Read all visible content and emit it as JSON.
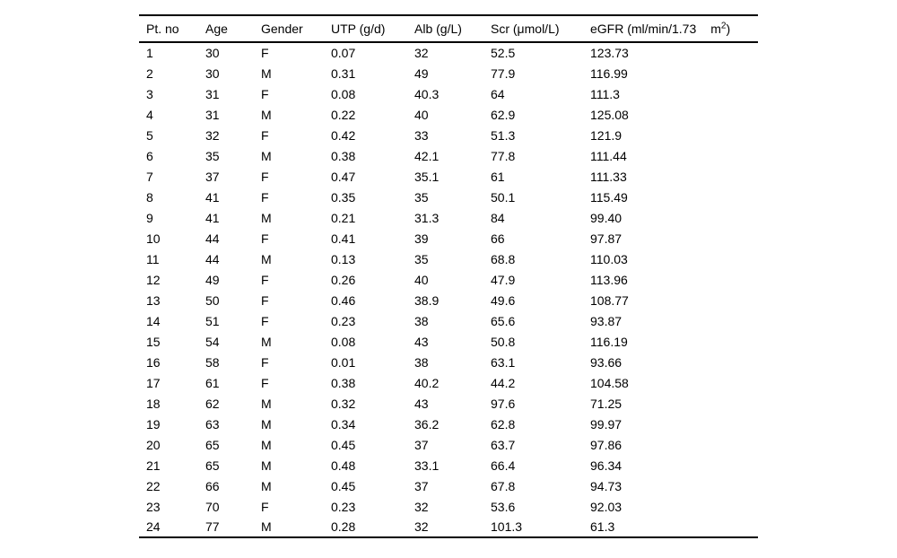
{
  "page": {
    "background_color": "#ffffff",
    "text_color": "#000000"
  },
  "table": {
    "headers": [
      "Pt. no",
      "Age",
      "Gender",
      "UTP (g/d)",
      "Alb (g/L)",
      "Scr (μmol/L)"
    ],
    "egfr_header": {
      "main": "eGFR (ml/min/1.73",
      "unit_base": "m",
      "unit_exponent": "2",
      "unit_close": ")"
    },
    "column_keys": [
      "pt-no",
      "age",
      "gender",
      "utp",
      "alb",
      "scr",
      "egfr"
    ],
    "rows": [
      [
        "1",
        "30",
        "F",
        "0.07",
        "32",
        "52.5",
        "123.73"
      ],
      [
        "2",
        "30",
        "M",
        "0.31",
        "49",
        "77.9",
        "116.99"
      ],
      [
        "3",
        "31",
        "F",
        "0.08",
        "40.3",
        "64",
        "111.3"
      ],
      [
        "4",
        "31",
        "M",
        "0.22",
        "40",
        "62.9",
        "125.08"
      ],
      [
        "5",
        "32",
        "F",
        "0.42",
        "33",
        "51.3",
        "121.9"
      ],
      [
        "6",
        "35",
        "M",
        "0.38",
        "42.1",
        "77.8",
        "111.44"
      ],
      [
        "7",
        "37",
        "F",
        "0.47",
        "35.1",
        "61",
        "111.33"
      ],
      [
        "8",
        "41",
        "F",
        "0.35",
        "35",
        "50.1",
        "115.49"
      ],
      [
        "9",
        "41",
        "M",
        "0.21",
        "31.3",
        "84",
        "99.40"
      ],
      [
        "10",
        "44",
        "F",
        "0.41",
        "39",
        "66",
        "97.87"
      ],
      [
        "11",
        "44",
        "M",
        "0.13",
        "35",
        "68.8",
        "110.03"
      ],
      [
        "12",
        "49",
        "F",
        "0.26",
        "40",
        "47.9",
        "113.96"
      ],
      [
        "13",
        "50",
        "F",
        "0.46",
        "38.9",
        "49.6",
        "108.77"
      ],
      [
        "14",
        "51",
        "F",
        "0.23",
        "38",
        "65.6",
        "93.87"
      ],
      [
        "15",
        "54",
        "M",
        "0.08",
        "43",
        "50.8",
        "116.19"
      ],
      [
        "16",
        "58",
        "F",
        "0.01",
        "38",
        "63.1",
        "93.66"
      ],
      [
        "17",
        "61",
        "F",
        "0.38",
        "40.2",
        "44.2",
        "104.58"
      ],
      [
        "18",
        "62",
        "M",
        "0.32",
        "43",
        "97.6",
        "71.25"
      ],
      [
        "19",
        "63",
        "M",
        "0.34",
        "36.2",
        "62.8",
        "99.97"
      ],
      [
        "20",
        "65",
        "M",
        "0.45",
        "37",
        "63.7",
        "97.86"
      ],
      [
        "21",
        "65",
        "M",
        "0.48",
        "33.1",
        "66.4",
        "96.34"
      ],
      [
        "22",
        "66",
        "M",
        "0.45",
        "37",
        "67.8",
        "94.73"
      ],
      [
        "23",
        "70",
        "F",
        "0.23",
        "32",
        "53.6",
        "92.03"
      ],
      [
        "24",
        "77",
        "M",
        "0.28",
        "32",
        "101.3",
        "61.3"
      ]
    ]
  }
}
